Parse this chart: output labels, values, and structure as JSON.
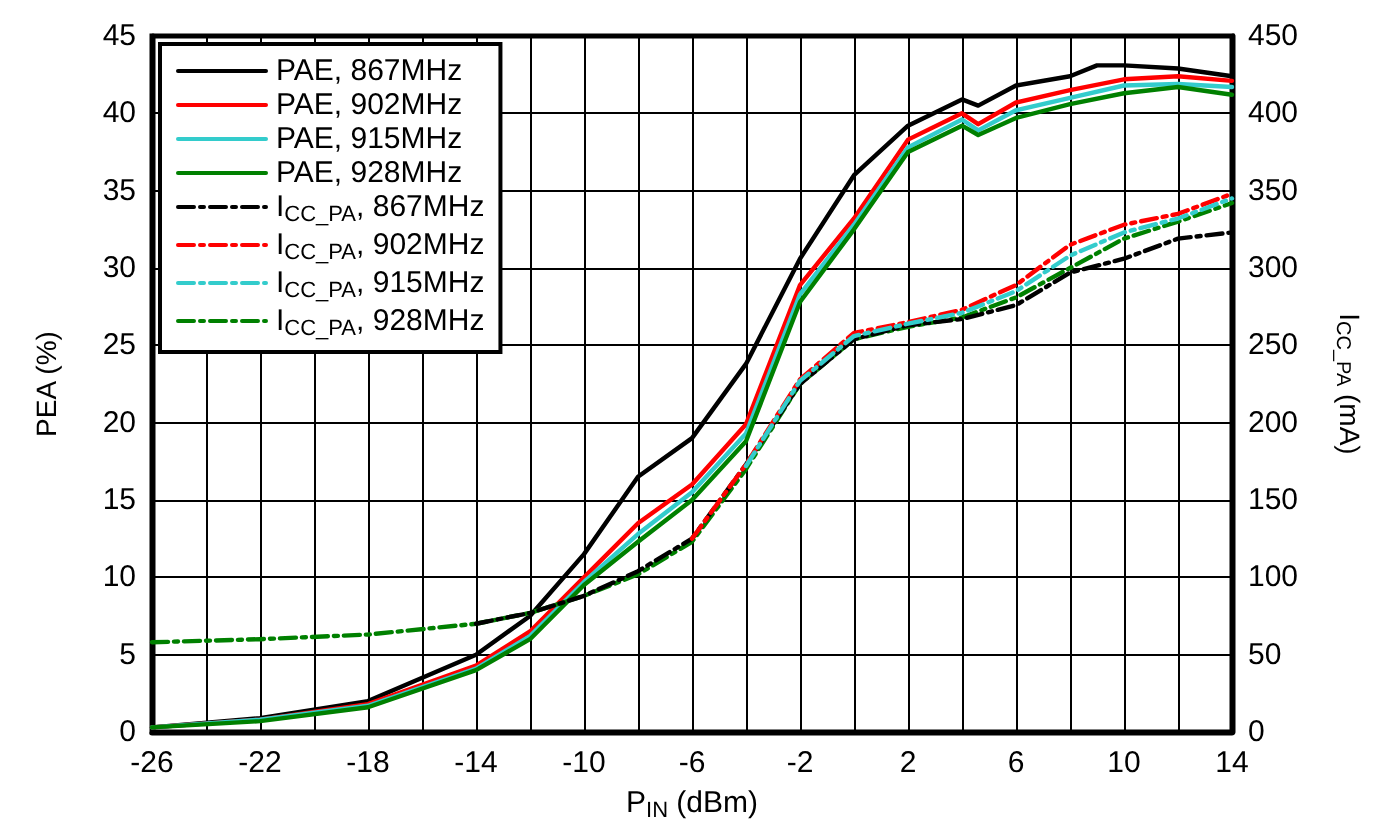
{
  "chart_data": {
    "type": "line",
    "xlabel": "P$_{IN}$ (dBm)",
    "ylabel": "PEA (%)",
    "y2label": "I$_{CC_PA}$ (mA)",
    "xlim": [
      -26,
      14
    ],
    "xticks": [
      -26,
      {
        "value": -24,
        "label": null
      },
      -22,
      {
        "value": -20,
        "label": null
      },
      -18,
      {
        "value": -16,
        "label": null
      },
      -14,
      {
        "value": -12,
        "label": null
      },
      -10,
      {
        "value": -8,
        "label": null
      },
      -6,
      {
        "value": -4,
        "label": null
      },
      -2,
      {
        "value": 0,
        "label": null
      },
      2,
      {
        "value": 4,
        "label": null
      },
      6,
      {
        "value": 8,
        "label": null
      },
      10,
      {
        "value": 12,
        "label": null
      },
      14
    ],
    "ylim": [
      0,
      45
    ],
    "yticks": [
      0,
      5,
      10,
      15,
      20,
      25,
      30,
      35,
      40,
      45
    ],
    "y2lim": [
      0,
      450
    ],
    "y2ticks": [
      0,
      50,
      100,
      150,
      200,
      250,
      300,
      350,
      400,
      450
    ],
    "grid": true,
    "legend": "top left",
    "marker": "none",
    "series": [
      {
        "name": "PAE, 867MHz",
        "color": "#000000",
        "line_style": "solid",
        "x": [
          -26,
          -22,
          -18,
          -14,
          -12,
          -10,
          -8,
          -6,
          -4,
          -2,
          0,
          2,
          4,
          4.6,
          6,
          8,
          9,
          10,
          12,
          14
        ],
        "values": [
          0.3,
          0.9,
          2,
          5,
          7.5,
          11.5,
          16.5,
          19,
          23.8,
          30.6,
          36,
          39.2,
          40.9,
          40.5,
          41.8,
          42.4,
          43.1,
          43.1,
          42.9,
          42.4
        ]
      },
      {
        "name": "PAE, 902MHz",
        "color": "#ff0000",
        "line_style": "solid",
        "x": [
          -26,
          -22,
          -18,
          -14,
          -12,
          -10,
          -8,
          -6,
          -4,
          -2,
          0,
          2,
          4,
          4.6,
          6,
          8,
          10,
          12,
          14
        ],
        "values": [
          0.3,
          0.8,
          1.8,
          4.3,
          6.5,
          10,
          13.5,
          16,
          19.9,
          28.9,
          33.2,
          38.3,
          40,
          39.3,
          40.7,
          41.5,
          42.2,
          42.4,
          42.1
        ]
      },
      {
        "name": "PAE, 915MHz",
        "color": "#33cccc",
        "line_style": "solid",
        "x": [
          -26,
          -22,
          -18,
          -14,
          -12,
          -10,
          -8,
          -6,
          -4,
          -2,
          0,
          2,
          4,
          4.6,
          6,
          8,
          10,
          12,
          14
        ],
        "values": [
          0.3,
          0.8,
          1.7,
          4.1,
          6.2,
          9.7,
          12.8,
          15.5,
          19.3,
          28.3,
          32.8,
          37.8,
          39.6,
          38.9,
          40.2,
          41,
          41.8,
          41.9,
          41.7
        ]
      },
      {
        "name": "PAE, 928MHz",
        "color": "#008000",
        "line_style": "solid",
        "x": [
          -26,
          -22,
          -18,
          -14,
          -12,
          -10,
          -8,
          -6,
          -4,
          -2,
          0,
          2,
          4,
          4.6,
          6,
          8,
          10,
          12,
          14
        ],
        "values": [
          0.3,
          0.7,
          1.6,
          4,
          6,
          9.5,
          12.3,
          15,
          18.8,
          27.8,
          32.5,
          37.5,
          39.2,
          38.6,
          39.7,
          40.6,
          41.3,
          41.7,
          41.2
        ]
      },
      {
        "name": "I$_{CC_PA}$, 867MHz",
        "color": "#000000",
        "line_style": "dashed",
        "axis": "y2",
        "x": [
          -14,
          -12,
          -10,
          -8,
          -6,
          -4,
          -2,
          0,
          2,
          4,
          6,
          8,
          10,
          12,
          14
        ],
        "values": [
          70,
          77,
          88,
          104,
          125,
          173,
          225,
          254,
          263,
          267,
          276,
          297,
          306,
          319,
          323
        ]
      },
      {
        "name": "I$_{CC_PA}$, 902MHz",
        "color": "#ff0000",
        "line_style": "dashed",
        "axis": "y2",
        "x": [
          -6,
          -4,
          -2,
          0,
          2,
          4,
          6,
          8,
          10,
          12,
          14
        ],
        "values": [
          125,
          173,
          228,
          258,
          265,
          273,
          289,
          315,
          328,
          335,
          348
        ]
      },
      {
        "name": "I$_{CC_PA}$, 915MHz",
        "color": "#33cccc",
        "line_style": "dashed",
        "axis": "y2",
        "x": [
          -4,
          -2,
          0,
          2,
          4,
          6,
          8,
          10,
          12,
          14
        ],
        "values": [
          172,
          227,
          256,
          264,
          271,
          285,
          308,
          323,
          332,
          345
        ]
      },
      {
        "name": "I$_{CC_PA}$, 928MHz",
        "color": "#008000",
        "line_style": "dashed",
        "axis": "y2",
        "x": [
          -26,
          -22,
          -18,
          -14,
          -12,
          -10,
          -8,
          -6,
          -4,
          -2,
          0,
          2,
          4,
          6,
          8,
          10,
          12,
          14
        ],
        "values": [
          58,
          60,
          63,
          70,
          77,
          88,
          102,
          123,
          170,
          225,
          254,
          262,
          268,
          281,
          300,
          319,
          330,
          342
        ]
      }
    ]
  }
}
